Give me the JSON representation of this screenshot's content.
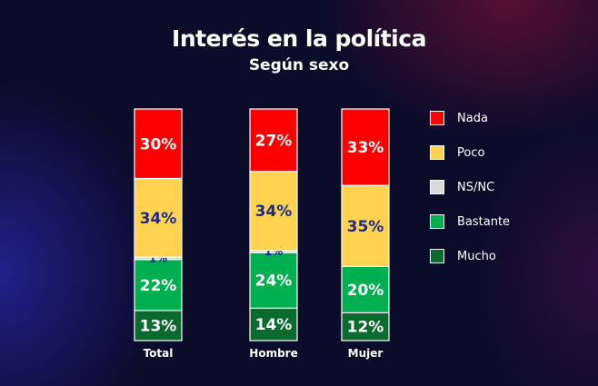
{
  "chart_data": {
    "type": "bar",
    "stacked": true,
    "title": "Interés en la política",
    "subtitle": "Según sexo",
    "categories": [
      "Total",
      "Hombre",
      "Mujer"
    ],
    "series": [
      {
        "name": "Mucho",
        "color": "#0b6a2e",
        "values": [
          13,
          14,
          12
        ]
      },
      {
        "name": "Bastante",
        "color": "#00b050",
        "values": [
          22,
          24,
          20
        ]
      },
      {
        "name": "NS/NC",
        "color": "#d9d9d9",
        "values": [
          1,
          1,
          0
        ]
      },
      {
        "name": "Poco",
        "color": "#ffd34f",
        "values": [
          34,
          34,
          35
        ]
      },
      {
        "name": "Nada",
        "color": "#ff0000",
        "values": [
          30,
          27,
          33
        ]
      }
    ],
    "label_colors": {
      "Mucho": "#ffffff",
      "Bastante": "#ffffff",
      "NS/NC": "#1a2a8c",
      "Poco": "#1a2a8c",
      "Nada": "#ffffff"
    },
    "legend_order": [
      "Nada",
      "Poco",
      "NS/NC",
      "Bastante",
      "Mucho"
    ],
    "legend_position": "right",
    "ylim": [
      0,
      100
    ],
    "grid": false
  }
}
